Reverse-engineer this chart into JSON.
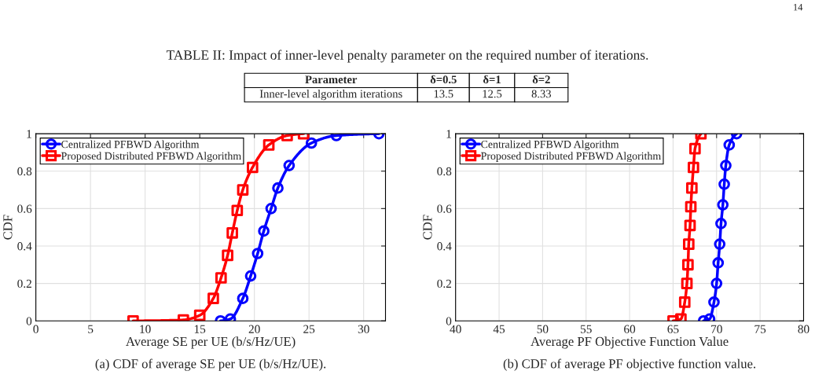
{
  "chart_data": [
    {
      "type": "other",
      "title": "TABLE II: Impact of inner-level penalty parameter on the required number of iterations.",
      "annotations": [
        "14",
        "Parameter",
        "δ=0.5",
        "δ=1",
        "δ=2",
        "Inner-level algorithm iterations",
        "13.5",
        "12.5",
        "8.33"
      ]
    },
    {
      "type": "line",
      "title": "(a) CDF of average SE per UE (b/s/Hz/UE).",
      "xlabel": "Average SE per UE (b/s/Hz/UE)",
      "ylabel": "CDF",
      "xlim": [
        0,
        32
      ],
      "xticks": [
        0,
        5,
        10,
        15,
        20,
        25,
        30
      ],
      "ylim": [
        0,
        1
      ],
      "yticks": [
        0,
        0.2,
        0.4,
        0.6,
        0.8,
        1
      ],
      "grid": true,
      "legend": "top left",
      "series": [
        {
          "name": "Centralized PFBWD Algorithm",
          "color": "#0000ff",
          "marker": "circle",
          "x": [
            16.9,
            17.8,
            18.94,
            19.66,
            20.3,
            20.86,
            21.53,
            22.15,
            23.18,
            25.22,
            27.5,
            31.4
          ],
          "values": [
            0,
            0.01,
            0.12,
            0.24,
            0.36,
            0.48,
            0.6,
            0.71,
            0.83,
            0.95,
            0.99,
            1
          ]
        },
        {
          "name": "Proposed Distributed PFBWD Algorithm",
          "color": "#ff0000",
          "marker": "square",
          "x": [
            8.9,
            13.5,
            15.0,
            16.24,
            16.95,
            17.55,
            17.98,
            18.43,
            18.94,
            19.83,
            21.32,
            23.0,
            24.5
          ],
          "values": [
            0,
            0.005,
            0.03,
            0.12,
            0.23,
            0.35,
            0.47,
            0.59,
            0.7,
            0.82,
            0.94,
            0.99,
            1
          ]
        }
      ]
    },
    {
      "type": "line",
      "title": "(b) CDF of average PF objective function value.",
      "xlabel": "Average PF Objective Function Value",
      "ylabel": "CDF",
      "xlim": [
        40,
        80
      ],
      "xticks": [
        40,
        45,
        50,
        55,
        60,
        65,
        70,
        75,
        80
      ],
      "ylim": [
        0,
        1
      ],
      "yticks": [
        0,
        0.2,
        0.4,
        0.6,
        0.8,
        1
      ],
      "grid": true,
      "legend": "top left",
      "series": [
        {
          "name": "Centralized PFBWD Algorithm",
          "color": "#0000ff",
          "marker": "circle",
          "x": [
            68.5,
            69.2,
            69.7,
            70.0,
            70.18,
            70.36,
            70.51,
            70.72,
            70.88,
            71.06,
            71.45,
            72.3
          ],
          "values": [
            0,
            0.01,
            0.1,
            0.2,
            0.31,
            0.41,
            0.52,
            0.62,
            0.73,
            0.83,
            0.94,
            1
          ]
        },
        {
          "name": "Proposed Distributed PFBWD Algorithm",
          "color": "#ff0000",
          "marker": "square",
          "x": [
            65.0,
            65.9,
            66.34,
            66.59,
            66.71,
            66.8,
            66.95,
            67.04,
            67.16,
            67.34,
            67.52,
            68.2
          ],
          "values": [
            0,
            0.01,
            0.1,
            0.2,
            0.3,
            0.41,
            0.51,
            0.61,
            0.71,
            0.82,
            0.92,
            1
          ]
        }
      ]
    }
  ]
}
